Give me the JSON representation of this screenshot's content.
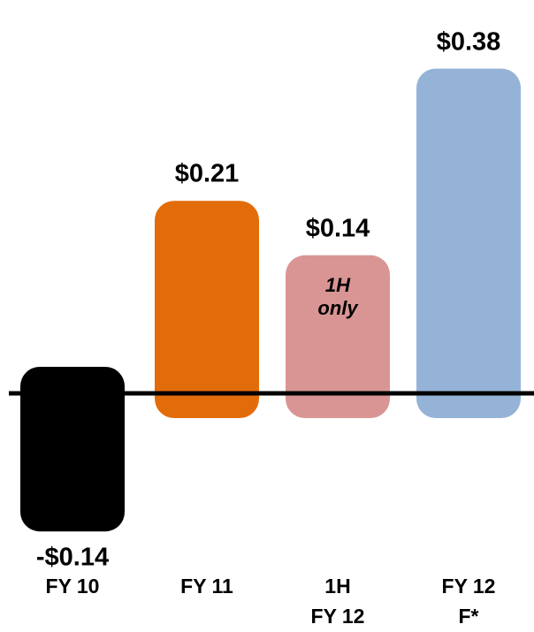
{
  "chart_data": {
    "type": "bar",
    "categories": [
      "FY 10",
      "FY 11",
      "1H\nFY 12",
      "FY 12 F*"
    ],
    "values": [
      -0.14,
      0.21,
      0.14,
      0.38
    ],
    "value_labels": [
      "-$0.14",
      "$0.21",
      "$0.14",
      "$0.38"
    ],
    "colors": [
      "#000000",
      "#e36c0a",
      "#d99594",
      "#95b3d7"
    ],
    "annotations": [
      {
        "category": 2,
        "text": "1H\nonly"
      }
    ]
  }
}
